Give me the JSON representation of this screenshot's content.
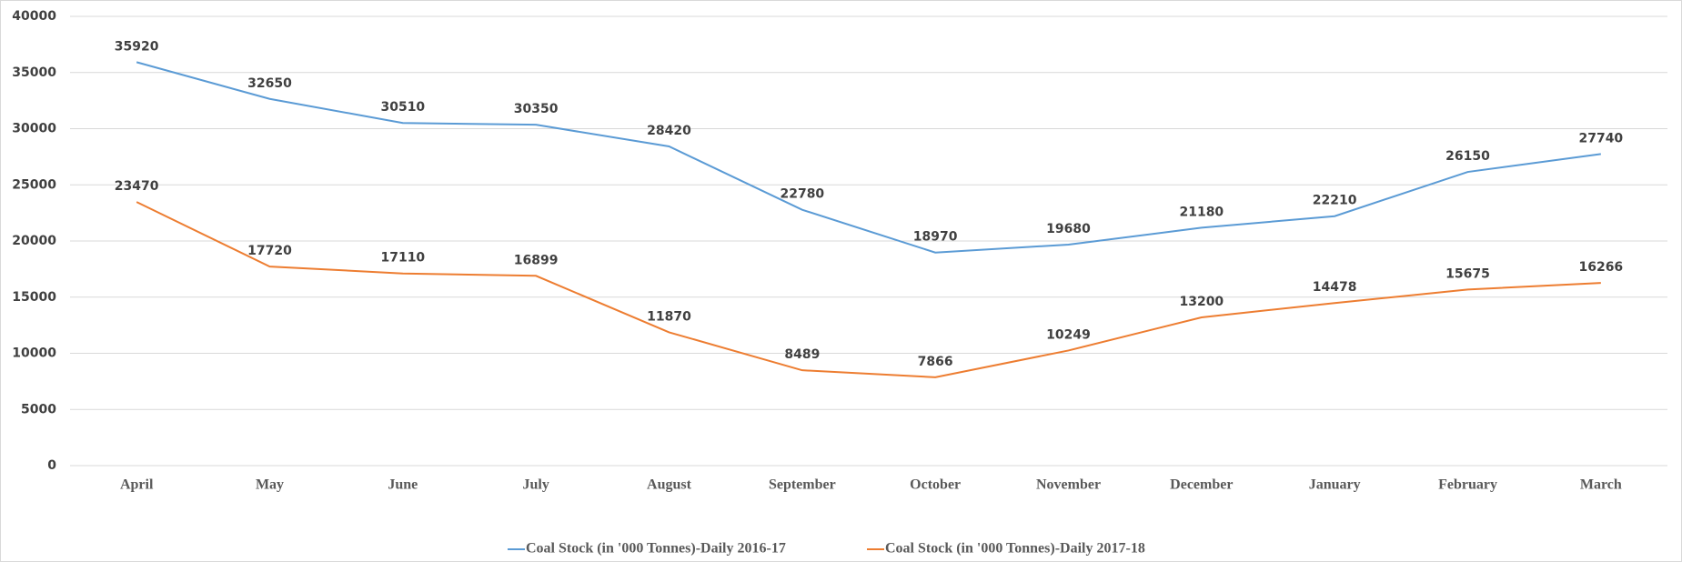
{
  "chart_data": {
    "type": "line",
    "categories": [
      "April",
      "May",
      "June",
      "July",
      "August",
      "September",
      "October",
      "November",
      "December",
      "January",
      "February",
      "March"
    ],
    "series": [
      {
        "name": "Coal Stock (in '000 Tonnes)-Daily 2016-17",
        "color": "#5b9bd5",
        "values": [
          35920,
          32650,
          30510,
          30350,
          28420,
          22780,
          18970,
          19680,
          21180,
          22210,
          26150,
          27740
        ]
      },
      {
        "name": "Coal Stock (in '000 Tonnes)-Daily 2017-18",
        "color": "#ed7d31",
        "values": [
          23470,
          17720,
          17110,
          16899,
          11870,
          8489,
          7866,
          10249,
          13200,
          14478,
          15675,
          16266
        ]
      }
    ],
    "ylim": [
      0,
      40000
    ],
    "yticks": [
      0,
      5000,
      10000,
      15000,
      20000,
      25000,
      30000,
      35000,
      40000
    ],
    "grid": true,
    "legend": "bottom"
  }
}
